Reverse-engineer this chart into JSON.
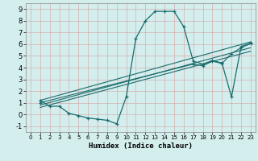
{
  "xlabel": "Humidex (Indice chaleur)",
  "xlim": [
    -0.5,
    23.5
  ],
  "ylim": [
    -1.5,
    9.5
  ],
  "xticks": [
    0,
    1,
    2,
    3,
    4,
    5,
    6,
    7,
    8,
    9,
    10,
    11,
    12,
    13,
    14,
    15,
    16,
    17,
    18,
    19,
    20,
    21,
    22,
    23
  ],
  "yticks": [
    -1,
    0,
    1,
    2,
    3,
    4,
    5,
    6,
    7,
    8,
    9
  ],
  "bg_color": "#d4eeee",
  "line_color": "#1a6b6b",
  "line1_x": [
    1,
    2,
    3,
    4,
    5,
    6,
    7,
    8,
    9,
    10,
    11,
    12,
    13,
    14,
    15,
    16,
    17,
    18,
    19,
    20,
    21,
    22,
    23
  ],
  "line1_y": [
    1.2,
    0.7,
    0.7,
    0.1,
    -0.1,
    -0.3,
    -0.4,
    -0.5,
    -0.8,
    1.5,
    6.5,
    8.0,
    8.8,
    8.8,
    8.8,
    7.5,
    4.55,
    4.3,
    4.6,
    4.4,
    1.5,
    5.8,
    6.1
  ],
  "line2_x": [
    1,
    23
  ],
  "line2_y": [
    1.2,
    6.2
  ],
  "line3_x": [
    1,
    17,
    18,
    19,
    20,
    21,
    22,
    23
  ],
  "line3_y": [
    1.0,
    4.3,
    4.15,
    4.55,
    4.35,
    5.2,
    5.7,
    6.05
  ],
  "line4_x": [
    1,
    23
  ],
  "line4_y": [
    0.8,
    5.7
  ],
  "line5_x": [
    1,
    23
  ],
  "line5_y": [
    0.6,
    5.4
  ]
}
